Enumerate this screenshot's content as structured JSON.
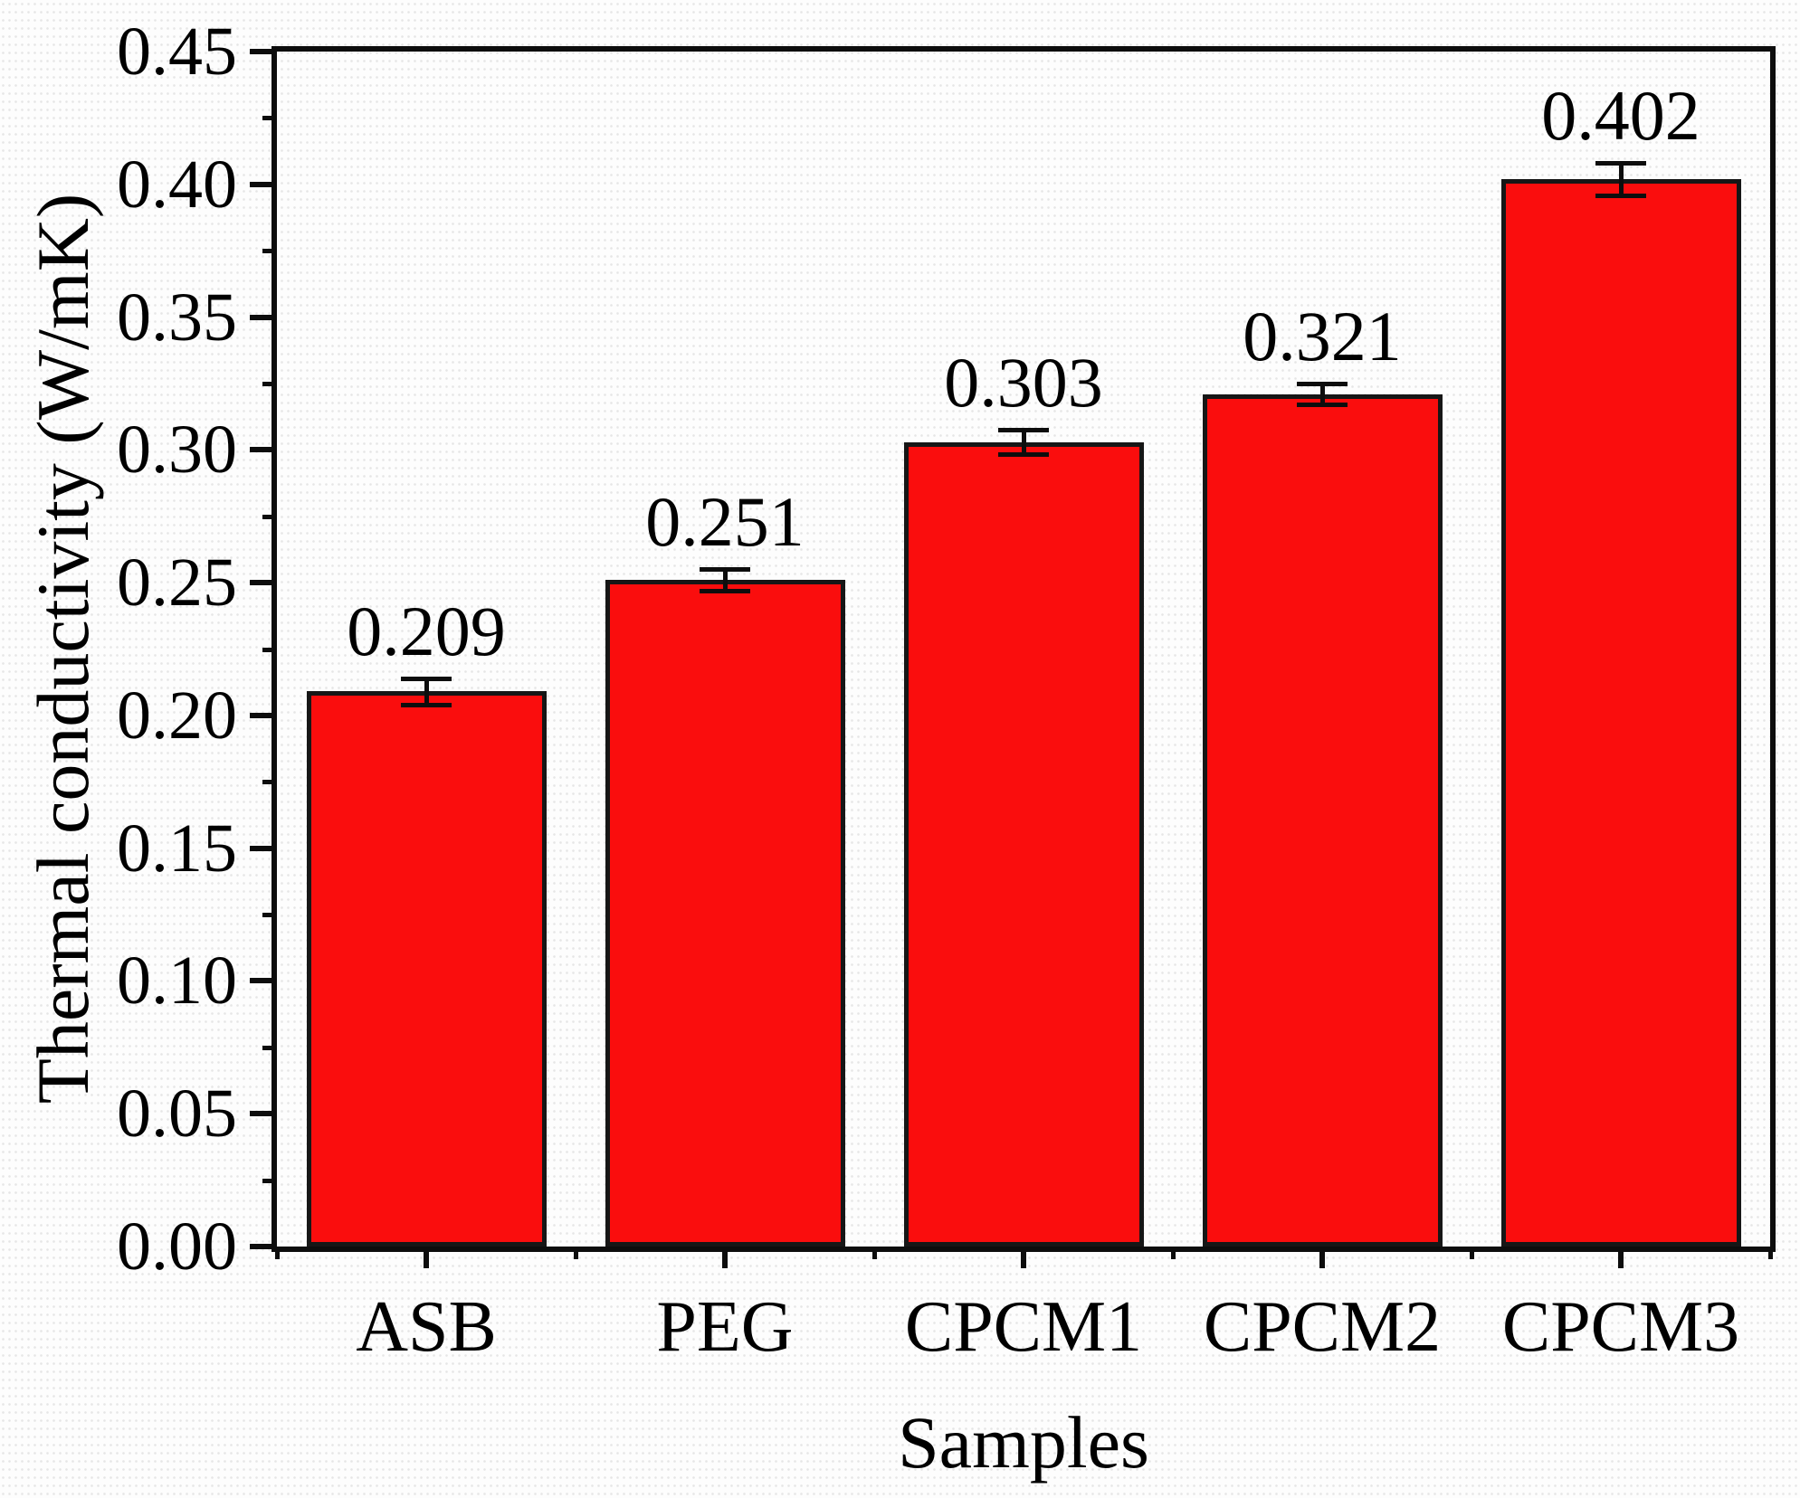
{
  "figure": {
    "background_color": "#fdfdfd",
    "frame_color": "#0d0d0d",
    "text_color": "#000000"
  },
  "chart_data": {
    "type": "bar",
    "title": "",
    "xlabel": "Samples",
    "ylabel": "Thermal conductivity (W/mK)",
    "categories": [
      "ASB",
      "PEG",
      "CPCM1",
      "CPCM2",
      "CPCM3"
    ],
    "values": [
      0.209,
      0.251,
      0.303,
      0.321,
      0.402
    ],
    "value_labels": [
      "0.209",
      "0.251",
      "0.303",
      "0.321",
      "0.402"
    ],
    "error_bars": [
      0.005,
      0.004,
      0.0045,
      0.004,
      0.006
    ],
    "ylim": [
      0.0,
      0.45
    ],
    "ytick_step": 0.05,
    "yminor_step": 0.025,
    "ytick_labels": [
      "0.00",
      "0.05",
      "0.10",
      "0.15",
      "0.20",
      "0.25",
      "0.30",
      "0.35",
      "0.40",
      "0.45"
    ],
    "bar_color": "#fa0d0d",
    "bar_border_color": "#161616",
    "error_bar_color": "#0d0d0d",
    "grid": "off",
    "legend": "none"
  }
}
